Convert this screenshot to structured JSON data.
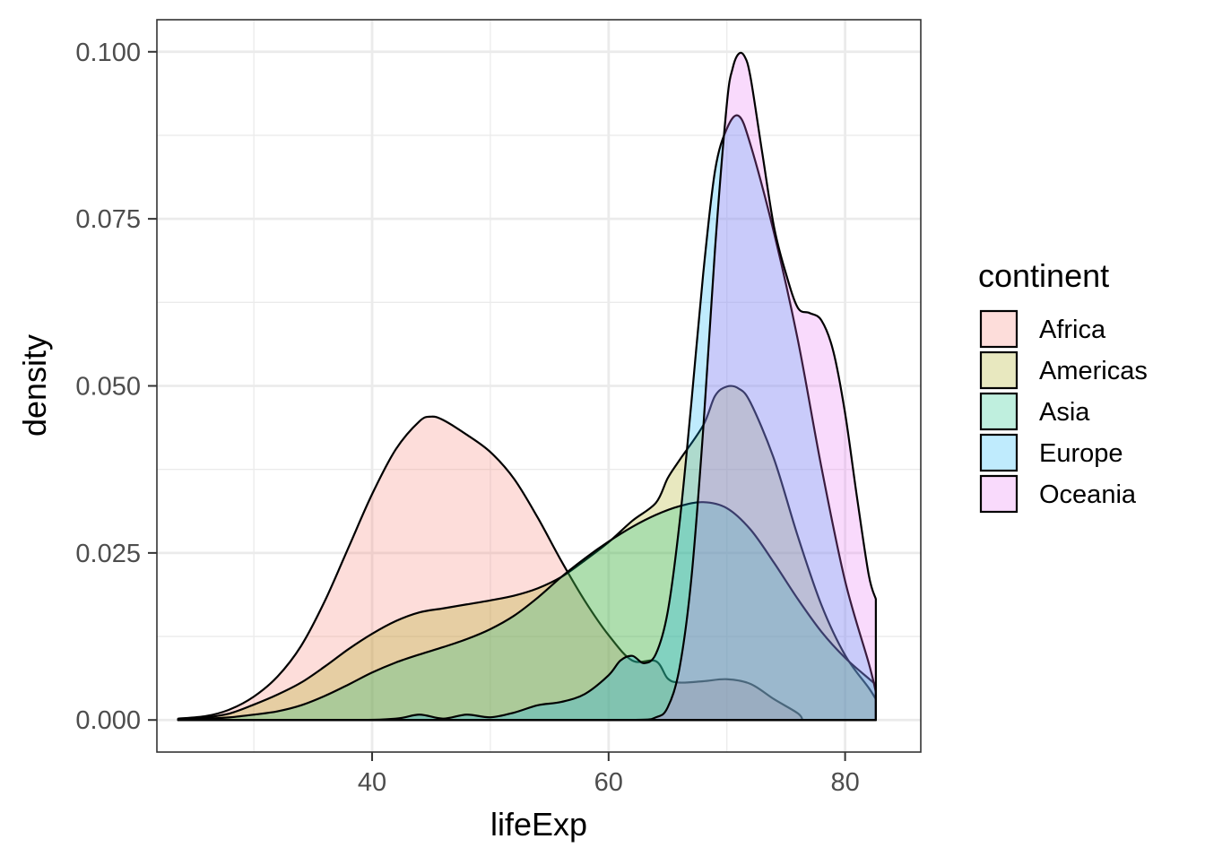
{
  "chart_data": {
    "type": "area",
    "xlabel": "lifeExp",
    "ylabel": "density",
    "xlim": [
      21.8,
      86.4
    ],
    "ylim": [
      -0.0048,
      0.1048
    ],
    "x_ticks": [
      40,
      60,
      80
    ],
    "x_tick_labels": [
      "40",
      "60",
      "80"
    ],
    "x_minor_ticks": [
      30,
      50,
      70
    ],
    "y_ticks": [
      0,
      0.025,
      0.05,
      0.075,
      0.1
    ],
    "y_tick_labels": [
      "0.000",
      "0.025",
      "0.050",
      "0.075",
      "0.100"
    ],
    "y_minor_ticks": [
      0.0125,
      0.0375,
      0.0625,
      0.0875
    ],
    "grid": true,
    "fill_alpha": 0.25,
    "legend": {
      "title": "continent",
      "placement": "right"
    },
    "series": [
      {
        "name": "Africa",
        "color": "#F8766D",
        "x": [
          23.6,
          26,
          28,
          30,
          32,
          34,
          36,
          38,
          40,
          42,
          44,
          45,
          46,
          48,
          50,
          52,
          54,
          56,
          58,
          60,
          62,
          64,
          65,
          66,
          68,
          70,
          72,
          74,
          76,
          76.4
        ],
        "y": [
          0.0002,
          0.0006,
          0.0016,
          0.0035,
          0.0065,
          0.0111,
          0.0178,
          0.0258,
          0.0338,
          0.0405,
          0.0447,
          0.0454,
          0.0449,
          0.0427,
          0.0401,
          0.0361,
          0.0303,
          0.0238,
          0.0178,
          0.0127,
          0.0089,
          0.0088,
          0.0062,
          0.0056,
          0.0058,
          0.0061,
          0.0054,
          0.0031,
          0.001,
          0
        ]
      },
      {
        "name": "Americas",
        "color": "#A3A500",
        "x": [
          23.6,
          26,
          28,
          30,
          32,
          34,
          36,
          38,
          40,
          42,
          44,
          46,
          48,
          50,
          52,
          54,
          56,
          58,
          60,
          62,
          64,
          65,
          66,
          68,
          69,
          70,
          71,
          72,
          74,
          76,
          78,
          80,
          82,
          82.6
        ],
        "y": [
          0.0001,
          0.0004,
          0.001,
          0.0023,
          0.0038,
          0.0056,
          0.008,
          0.0106,
          0.0129,
          0.0148,
          0.0161,
          0.0167,
          0.0173,
          0.0179,
          0.0186,
          0.0197,
          0.0214,
          0.0239,
          0.0266,
          0.0298,
          0.0325,
          0.0362,
          0.0389,
          0.0441,
          0.0485,
          0.0499,
          0.0496,
          0.0475,
          0.039,
          0.0275,
          0.0172,
          0.0097,
          0.0048,
          0.0031
        ]
      },
      {
        "name": "Asia",
        "color": "#00BF7D",
        "x": [
          23.6,
          26,
          28,
          30,
          32,
          34,
          36,
          38,
          40,
          42,
          44,
          46,
          48,
          50,
          52,
          54,
          56,
          58,
          60,
          62,
          64,
          66,
          68,
          70,
          72,
          74,
          76,
          78,
          80,
          82,
          82.6
        ],
        "y": [
          0.0001,
          0.0002,
          0.0004,
          0.0008,
          0.0013,
          0.0022,
          0.0036,
          0.0053,
          0.0071,
          0.0086,
          0.0098,
          0.0109,
          0.0121,
          0.0136,
          0.0156,
          0.0183,
          0.0214,
          0.0242,
          0.0267,
          0.0289,
          0.0307,
          0.032,
          0.0326,
          0.0317,
          0.0285,
          0.0235,
          0.0181,
          0.0132,
          0.0093,
          0.0062,
          0.0053
        ]
      },
      {
        "name": "Europe",
        "color": "#00B0F6",
        "x": [
          23.6,
          38,
          42,
          44,
          46,
          48,
          50,
          52,
          54,
          56,
          58,
          60,
          61,
          62,
          63,
          64,
          65,
          66,
          67,
          68,
          69,
          70,
          71,
          72,
          74,
          76,
          78,
          80,
          82,
          82.6
        ],
        "y": [
          0,
          0,
          0.0002,
          0.0008,
          0.0002,
          0.0008,
          0.0004,
          0.0011,
          0.0022,
          0.0027,
          0.0039,
          0.0067,
          0.0089,
          0.0096,
          0.0085,
          0.0099,
          0.0162,
          0.0295,
          0.0475,
          0.0668,
          0.0822,
          0.0885,
          0.0904,
          0.0861,
          0.0728,
          0.0569,
          0.0378,
          0.0208,
          0.0085,
          0.0042
        ]
      },
      {
        "name": "Oceania",
        "color": "#E76BF3",
        "x": [
          23.6,
          62,
          64,
          65,
          66,
          67,
          68,
          69,
          70,
          70.5,
          71,
          71.5,
          72,
          73,
          74,
          75,
          76,
          77,
          78,
          79,
          80,
          81,
          82,
          82.6
        ],
        "y": [
          0,
          0,
          0.0004,
          0.0019,
          0.0078,
          0.0212,
          0.0435,
          0.0705,
          0.0922,
          0.0976,
          0.0997,
          0.0993,
          0.0962,
          0.0848,
          0.0737,
          0.0668,
          0.0617,
          0.0609,
          0.0598,
          0.0552,
          0.0459,
          0.0334,
          0.0217,
          0.0181
        ]
      }
    ]
  }
}
